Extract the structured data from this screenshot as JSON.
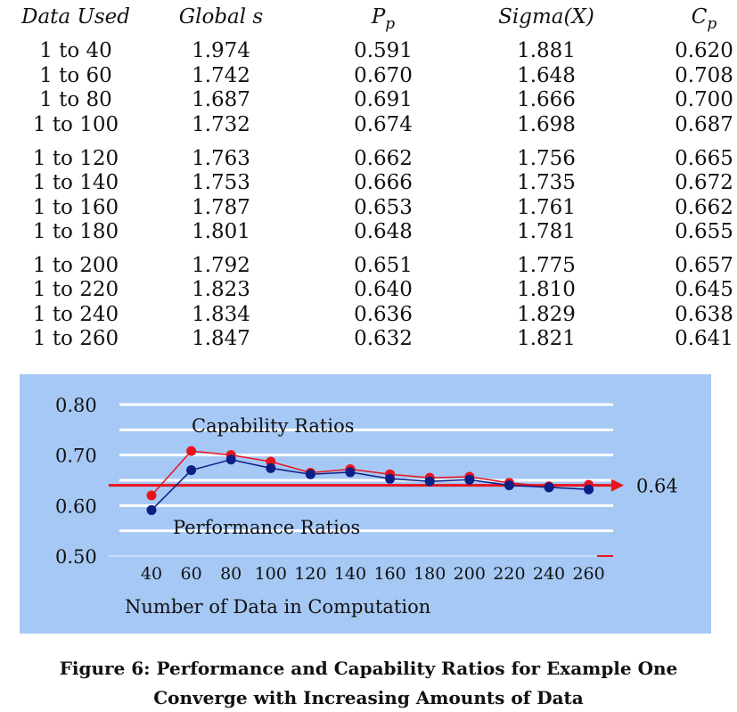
{
  "table": {
    "headers": [
      {
        "text": "Data Used",
        "sub": ""
      },
      {
        "text": "Global s",
        "sub": ""
      },
      {
        "text": "P",
        "sub": "p"
      },
      {
        "text": "Sigma(X)",
        "sub": ""
      },
      {
        "text": "C",
        "sub": "p"
      }
    ],
    "rows": [
      [
        "1 to 40",
        "1.974",
        "0.591",
        "1.881",
        "0.620"
      ],
      [
        "1 to 60",
        "1.742",
        "0.670",
        "1.648",
        "0.708"
      ],
      [
        "1 to 80",
        "1.687",
        "0.691",
        "1.666",
        "0.700"
      ],
      [
        "1 to 100",
        "1.732",
        "0.674",
        "1.698",
        "0.687"
      ],
      [
        "1 to 120",
        "1.763",
        "0.662",
        "1.756",
        "0.665"
      ],
      [
        "1 to 140",
        "1.753",
        "0.666",
        "1.735",
        "0.672"
      ],
      [
        "1 to 160",
        "1.787",
        "0.653",
        "1.761",
        "0.662"
      ],
      [
        "1 to 180",
        "1.801",
        "0.648",
        "1.781",
        "0.655"
      ],
      [
        "1 to 200",
        "1.792",
        "0.651",
        "1.775",
        "0.657"
      ],
      [
        "1 to 220",
        "1.823",
        "0.640",
        "1.810",
        "0.645"
      ],
      [
        "1 to 240",
        "1.834",
        "0.636",
        "1.829",
        "0.638"
      ],
      [
        "1 to 260",
        "1.847",
        "0.632",
        "1.821",
        "0.641"
      ]
    ]
  },
  "chart_data": {
    "type": "line",
    "x": [
      40,
      60,
      80,
      100,
      120,
      140,
      160,
      180,
      200,
      220,
      240,
      260
    ],
    "xlabel": "Number of Data in Computation",
    "ylabel": "",
    "yticks": [
      "0.80",
      "0.70",
      "0.60",
      "0.50"
    ],
    "ylim": [
      0.5,
      0.8
    ],
    "grid": true,
    "series": [
      {
        "name": "Capability Ratios",
        "color": "#e8141c",
        "values": [
          0.62,
          0.708,
          0.7,
          0.687,
          0.665,
          0.672,
          0.662,
          0.655,
          0.657,
          0.645,
          0.638,
          0.641
        ]
      },
      {
        "name": "Performance Ratios",
        "color": "#0b1f86",
        "values": [
          0.591,
          0.67,
          0.691,
          0.674,
          0.662,
          0.666,
          0.653,
          0.648,
          0.651,
          0.64,
          0.636,
          0.632
        ]
      }
    ],
    "reference_line": {
      "value": 0.64,
      "label": "0.64",
      "color": "#e8141c"
    },
    "gridline_values": [
      0.8,
      0.75,
      0.7,
      0.65,
      0.6,
      0.55
    ]
  },
  "caption": {
    "line1": "Figure 6:  Performance and Capability Ratios for Example One",
    "line2": "Converge with Increasing Amounts of Data"
  }
}
